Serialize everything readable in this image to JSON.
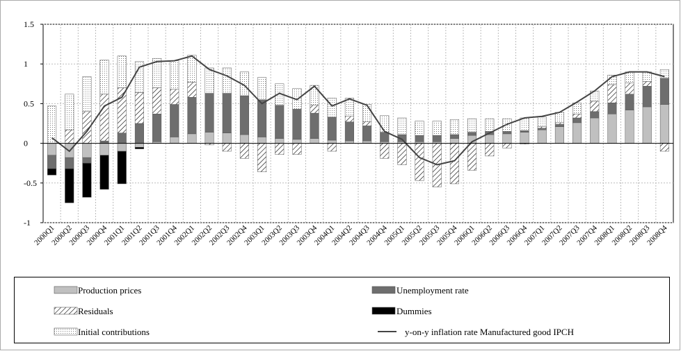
{
  "chart_data": {
    "type": "bar",
    "categories": [
      "2000Q1",
      "2000Q2",
      "2000Q3",
      "2000Q4",
      "2001Q1",
      "2001Q2",
      "2001Q3",
      "2001Q4",
      "2002Q1",
      "2002Q2",
      "2002Q3",
      "2002Q4",
      "2003Q1",
      "2003Q2",
      "2003Q3",
      "2003Q4",
      "2004Q1",
      "2004Q2",
      "2004Q3",
      "2004Q4",
      "2005Q1",
      "2005Q2",
      "2005Q3",
      "2005Q4",
      "2006Q1",
      "2006Q2",
      "2006Q3",
      "2006Q4",
      "2007Q1",
      "2007Q2",
      "2007Q3",
      "2007Q4",
      "2008Q1",
      "2008Q2",
      "2008Q3",
      "2008Q4"
    ],
    "series": [
      {
        "name": "Production prices",
        "type": "bar",
        "color": "#c0c0c0",
        "values": [
          -0.15,
          -0.18,
          -0.18,
          -0.15,
          -0.1,
          -0.05,
          0.02,
          0.08,
          0.12,
          0.14,
          0.13,
          0.11,
          0.08,
          0.06,
          0.05,
          0.06,
          0.04,
          0.03,
          0.03,
          0.02,
          0.02,
          0.02,
          0.02,
          0.06,
          0.1,
          0.11,
          0.12,
          0.14,
          0.17,
          0.21,
          0.26,
          0.32,
          0.37,
          0.42,
          0.46,
          0.49
        ]
      },
      {
        "name": "Unemployment rate",
        "type": "bar",
        "color": "#6e6e6e",
        "values": [
          -0.17,
          -0.14,
          -0.07,
          0.03,
          0.13,
          0.25,
          0.35,
          0.41,
          0.46,
          0.49,
          0.5,
          0.49,
          0.47,
          0.42,
          0.38,
          0.32,
          0.29,
          0.24,
          0.19,
          0.12,
          0.09,
          0.08,
          0.08,
          0.05,
          0.04,
          0.04,
          0.03,
          0.02,
          0.02,
          0.03,
          0.06,
          0.08,
          0.14,
          0.2,
          0.26,
          0.33
        ]
      },
      {
        "name": "Residuals",
        "type": "bar",
        "color": "#ffffff",
        "pattern": "hatch",
        "values": [
          0,
          0.17,
          0.4,
          0.59,
          0.57,
          0.39,
          0.33,
          0.19,
          0.19,
          -0.02,
          -0.1,
          -0.19,
          -0.36,
          -0.14,
          -0.14,
          0.1,
          -0.1,
          0.07,
          0.05,
          -0.19,
          -0.27,
          -0.47,
          -0.55,
          -0.51,
          -0.34,
          -0.16,
          -0.06,
          -0.01,
          0.02,
          0.02,
          0.05,
          0.13,
          0.23,
          0.14,
          0.06,
          -0.1
        ]
      },
      {
        "name": "Dummies",
        "type": "bar",
        "color": "#000000",
        "values": [
          -0.08,
          -0.43,
          -0.43,
          -0.43,
          -0.41,
          -0.02,
          0,
          0,
          0,
          0,
          0,
          0,
          0,
          0,
          0,
          0,
          0,
          0,
          0,
          0,
          0,
          0,
          0,
          0,
          0,
          0,
          0,
          0,
          0,
          0,
          0,
          0,
          0,
          0,
          0,
          0
        ]
      },
      {
        "name": "Initial contributions",
        "type": "bar",
        "color": "#ffffff",
        "pattern": "dots",
        "values": [
          0.47,
          0.45,
          0.44,
          0.43,
          0.4,
          0.39,
          0.37,
          0.36,
          0.34,
          0.32,
          0.32,
          0.3,
          0.28,
          0.27,
          0.26,
          0.25,
          0.24,
          0.23,
          0.22,
          0.21,
          0.21,
          0.18,
          0.18,
          0.19,
          0.17,
          0.16,
          0.16,
          0.16,
          0.12,
          0.13,
          0.14,
          0.13,
          0.12,
          0.14,
          0.12,
          0.11
        ]
      },
      {
        "name": "y-on-y inflation rate Manufactured good IPCH",
        "type": "line",
        "color": "#444444",
        "values": [
          0.07,
          -0.1,
          0.15,
          0.47,
          0.58,
          0.96,
          1.03,
          1.04,
          1.1,
          0.93,
          0.85,
          0.73,
          0.5,
          0.63,
          0.55,
          0.72,
          0.47,
          0.56,
          0.48,
          0.15,
          0.05,
          -0.18,
          -0.27,
          -0.22,
          0.02,
          0.13,
          0.24,
          0.32,
          0.34,
          0.39,
          0.52,
          0.66,
          0.84,
          0.9,
          0.9,
          0.84
        ]
      }
    ],
    "ylim": [
      -1,
      1.5
    ],
    "yticks": [
      -1,
      -0.5,
      0,
      0.5,
      1,
      1.5
    ],
    "grid": true
  }
}
